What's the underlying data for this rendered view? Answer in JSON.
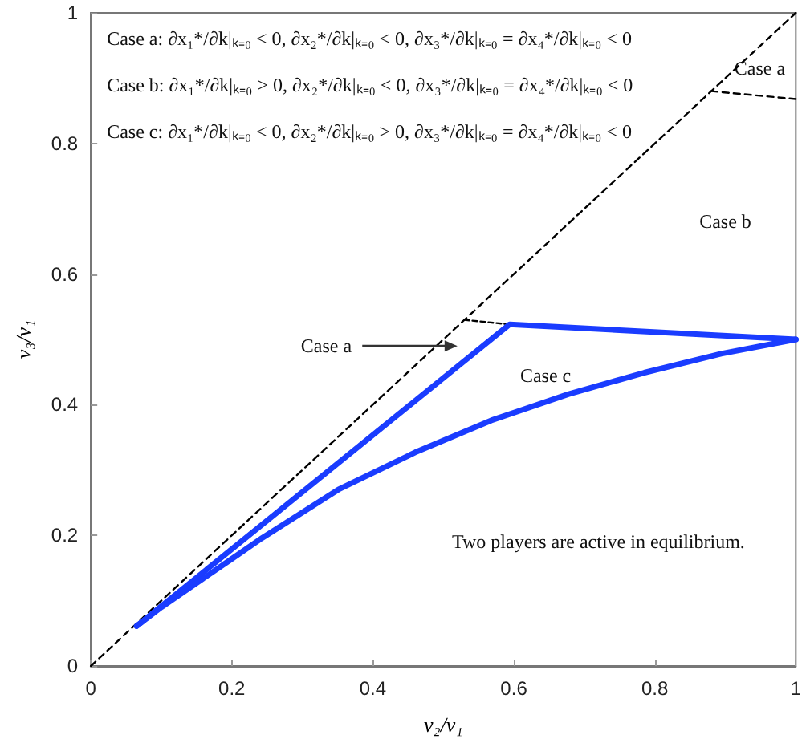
{
  "chart_data": {
    "type": "line",
    "xlabel": "v₂/v₁",
    "ylabel": "v₃/v₁",
    "xlim": [
      0,
      1
    ],
    "ylim": [
      0,
      1
    ],
    "xticks": [
      0,
      0.2,
      0.4,
      0.6,
      0.8,
      1
    ],
    "yticks": [
      0,
      0.2,
      0.4,
      0.6,
      0.8,
      1
    ],
    "grid": false,
    "marker": "none",
    "series": [
      {
        "color": "#000000",
        "line_style": "dashed",
        "x": [
          0,
          1
        ],
        "values": [
          0,
          1
        ]
      },
      {
        "color": "#000000",
        "line_style": "dashed",
        "x": [
          0.88,
          1
        ],
        "values": [
          0.88,
          0.868
        ]
      },
      {
        "color": "#000000",
        "line_style": "dashed",
        "x": [
          0.53,
          0.594
        ],
        "values": [
          0.53,
          0.523
        ]
      },
      {
        "color": "#1a3cff",
        "line_style": "solid",
        "x": [
          0.065,
          0.594,
          1
        ],
        "values": [
          0.061,
          0.523,
          0.5
        ]
      },
      {
        "color": "#1a3cff",
        "line_style": "solid",
        "x": [
          0.065,
          0.1,
          0.2,
          0.243,
          0.351,
          0.46,
          0.568,
          0.677,
          0.785,
          0.894,
          1
        ],
        "values": [
          0.061,
          0.09,
          0.164,
          0.196,
          0.27,
          0.327,
          0.376,
          0.416,
          0.449,
          0.478,
          0.5
        ]
      }
    ],
    "annotations": [
      "Case a: ∂x₁*/∂k|ₖ₌₀ < 0, ∂x₂*/∂k|ₖ₌₀ < 0, ∂x₃*/∂k|ₖ₌₀ = ∂x₄*/∂k|ₖ₌₀ < 0",
      "Case b: ∂x₁*/∂k|ₖ₌₀ > 0, ∂x₂*/∂k|ₖ₌₀ < 0, ∂x₃*/∂k|ₖ₌₀ = ∂x₄*/∂k|ₖ₌₀ < 0",
      "Case c: ∂x₁*/∂k|ₖ₌₀ < 0, ∂x₂*/∂k|ₖ₌₀ > 0, ∂x₃*/∂k|ₖ₌₀ = ∂x₄*/∂k|ₖ₌₀ < 0",
      "Case a",
      "Case b",
      "Case a",
      "Case c",
      "Two players are active in equilibrium."
    ]
  }
}
